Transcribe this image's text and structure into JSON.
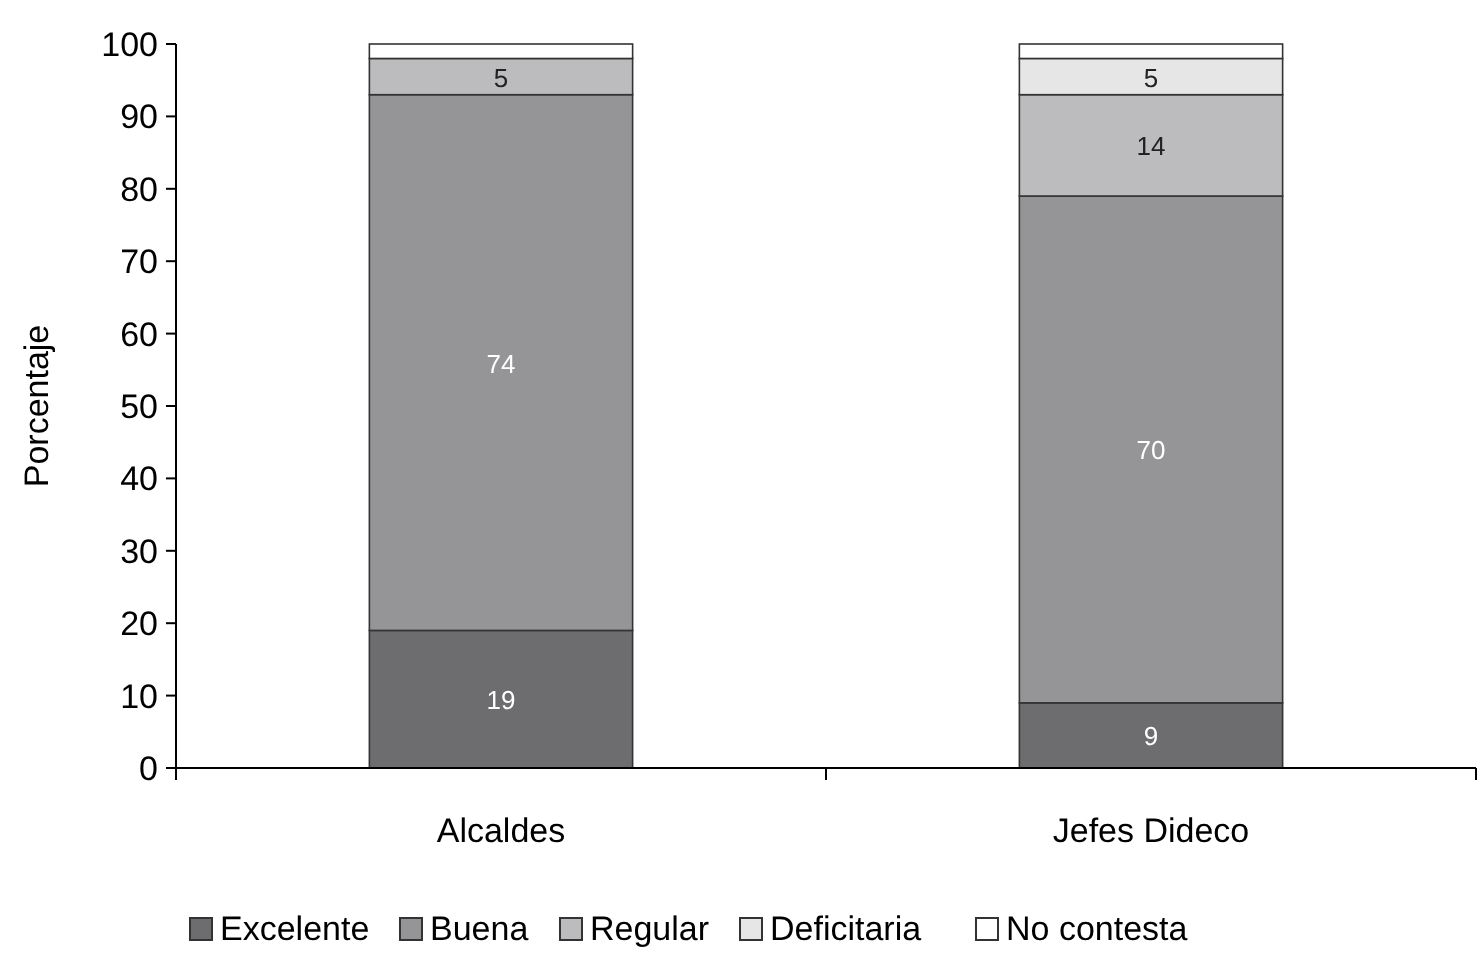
{
  "chart_data": {
    "type": "bar",
    "ylabel": "Porcentaje",
    "categories": [
      "Alcaldes",
      "Jefes Dideco"
    ],
    "stacked": true,
    "ylim": [
      0,
      100
    ],
    "yticks": [
      0,
      10,
      20,
      30,
      40,
      50,
      60,
      70,
      80,
      90,
      100
    ],
    "legend": "bottom",
    "grid": false,
    "series": [
      {
        "name": "Excelente",
        "color": "#6d6d6f",
        "values": [
          19,
          9
        ],
        "value_labels": [
          "19",
          "9"
        ]
      },
      {
        "name": "Buena",
        "color": "#959598",
        "values": [
          74,
          70
        ],
        "value_labels": [
          "74",
          "70"
        ]
      },
      {
        "name": "Regular",
        "color": "#bcbcbe",
        "values": [
          5,
          14
        ],
        "value_labels": [
          "5",
          "14"
        ]
      },
      {
        "name": "Deficitaria",
        "color": "#e6e6e7",
        "values": [
          0,
          5
        ],
        "value_labels": [
          null,
          "5"
        ]
      },
      {
        "name": "No contesta",
        "color": "#ffffff",
        "values": [
          2,
          2
        ],
        "value_labels": [
          null,
          null
        ]
      }
    ]
  }
}
